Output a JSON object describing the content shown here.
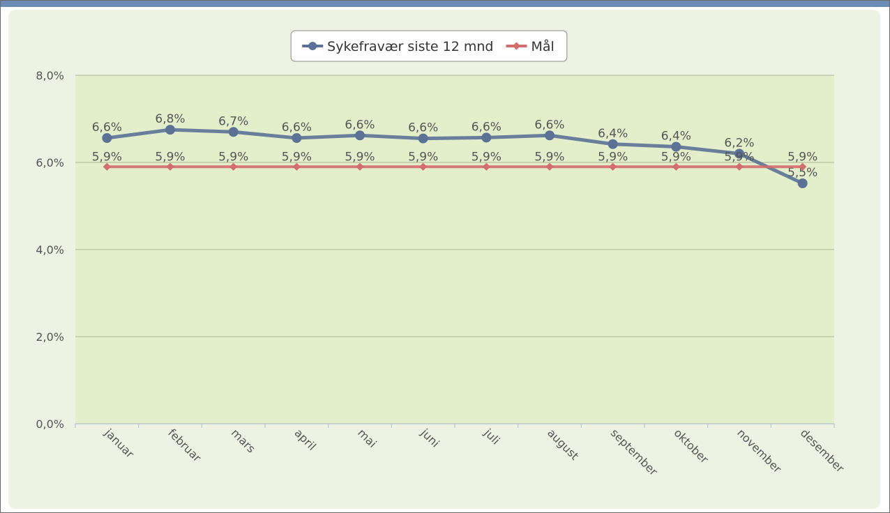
{
  "chart_data": {
    "type": "line",
    "categories": [
      "januar",
      "februar",
      "mars",
      "april",
      "mai",
      "juni",
      "juli",
      "august",
      "september",
      "oktober",
      "november",
      "desember"
    ],
    "series": [
      {
        "name": "Sykefravær siste 12 mnd",
        "color": "#5b7195",
        "values": [
          6.56,
          6.75,
          6.7,
          6.56,
          6.62,
          6.55,
          6.57,
          6.62,
          6.42,
          6.36,
          6.2,
          5.52
        ],
        "value_labels": [
          "6,6%",
          "6,8%",
          "6,7%",
          "6,6%",
          "6,6%",
          "6,6%",
          "6,6%",
          "6,6%",
          "6,4%",
          "6,4%",
          "6,2%",
          "5,5%"
        ]
      },
      {
        "name": "Mål",
        "color": "#d36c6c",
        "values": [
          5.9,
          5.9,
          5.9,
          5.9,
          5.9,
          5.9,
          5.9,
          5.9,
          5.9,
          5.9,
          5.9,
          5.9
        ],
        "value_labels": [
          "5,9%",
          "5,9%",
          "5,9%",
          "5,9%",
          "5,9%",
          "5,9%",
          "5,9%",
          "5,9%",
          "5,9%",
          "5,9%",
          "5,9%",
          "5,9%"
        ]
      }
    ],
    "ylim": [
      0,
      8
    ],
    "yticks": [
      {
        "value": 0,
        "label": "0,0%"
      },
      {
        "value": 2,
        "label": "2,0%"
      },
      {
        "value": 4,
        "label": "4,0%"
      },
      {
        "value": 6,
        "label": "6,0%"
      },
      {
        "value": 8,
        "label": "8,0%"
      }
    ],
    "grid": true,
    "legend": "top"
  }
}
